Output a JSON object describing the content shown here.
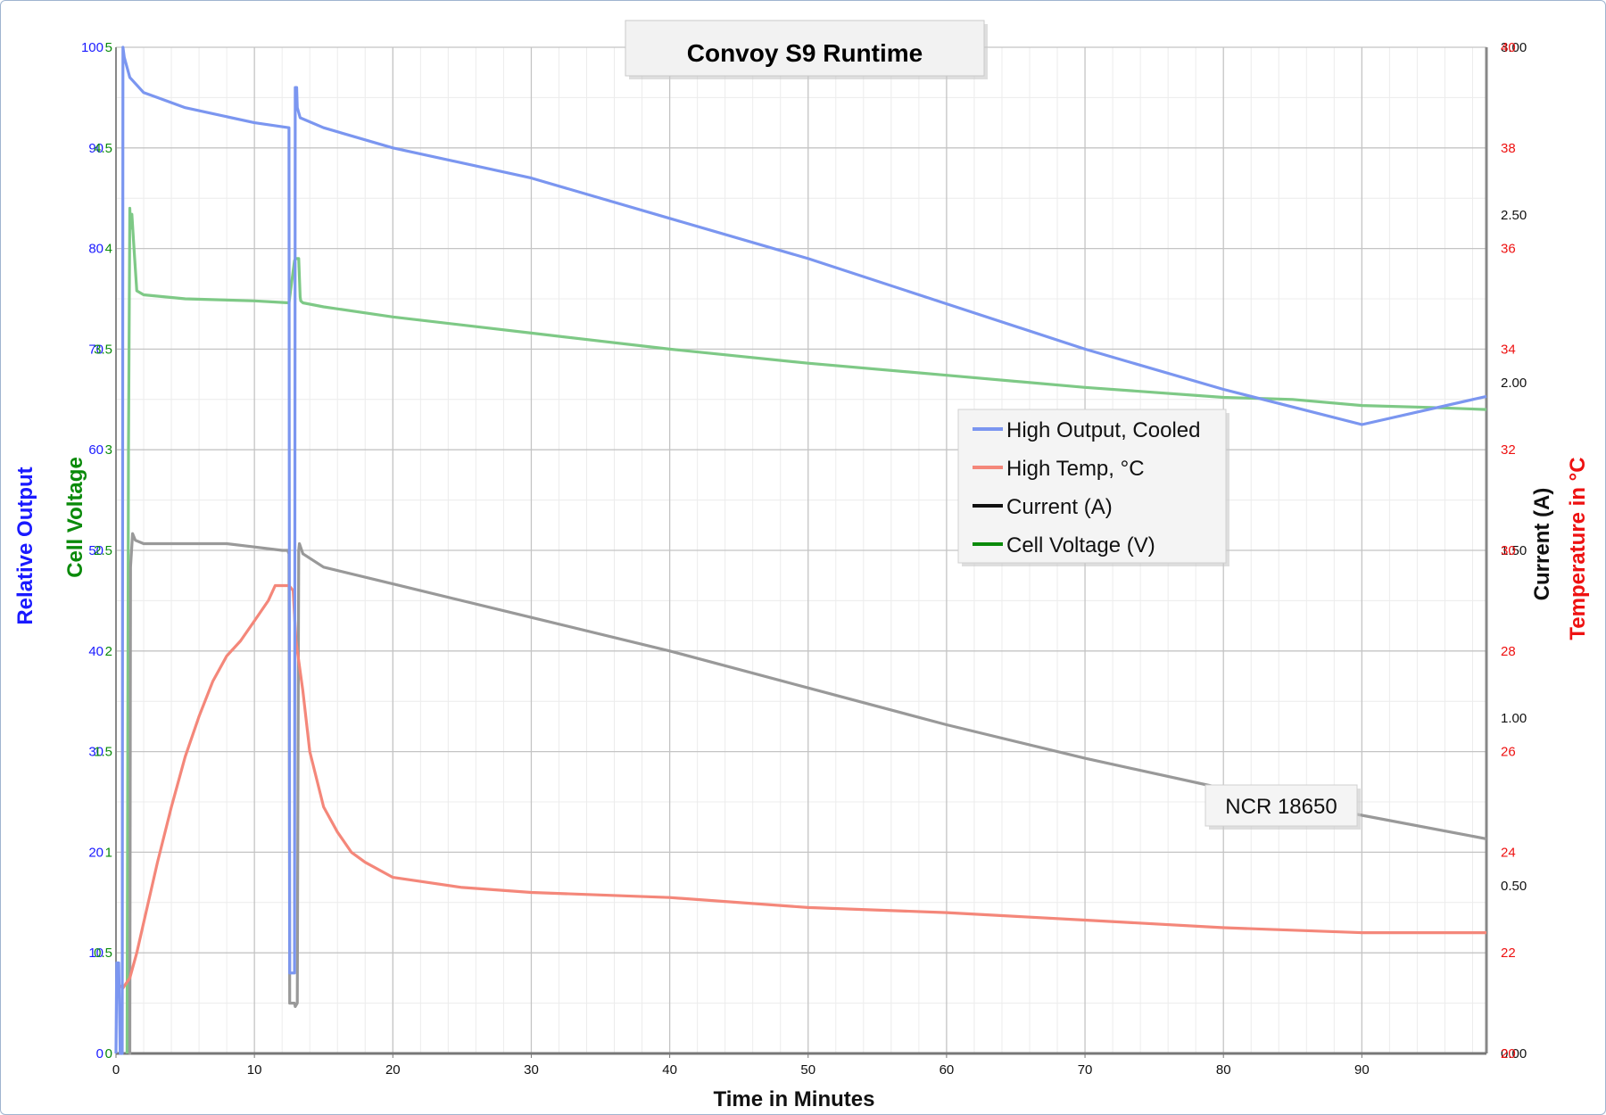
{
  "chart_data": {
    "type": "line",
    "title": "Convoy S9 Runtime",
    "xlabel": "Time in Minutes",
    "y_left_outer_label": "Relative Output",
    "y_left_inner_label": "Cell Voltage",
    "y_right_inner_label": "Current (A)",
    "y_right_outer_label": "Temperature in °C",
    "annotation": "NCR 18650",
    "xlim": [
      0,
      99
    ],
    "x_ticks": [
      "0",
      "10",
      "20",
      "30",
      "40",
      "50",
      "60",
      "70",
      "80",
      "90"
    ],
    "axes": {
      "relative_output": {
        "range": [
          0,
          100
        ],
        "ticks": [
          "0",
          "10",
          "20",
          "30",
          "40",
          "50",
          "60",
          "70",
          "80",
          "90",
          "100"
        ],
        "color": "#1a1aff"
      },
      "cell_voltage": {
        "range": [
          0,
          5
        ],
        "ticks": [
          "0",
          "0.5",
          "1",
          "1.5",
          "2",
          "2.5",
          "3",
          "3.5",
          "4",
          "4.5",
          "5"
        ],
        "color": "#0a8a0a"
      },
      "current": {
        "range": [
          0,
          3
        ],
        "ticks": [
          "0.00",
          "0.50",
          "1.00",
          "1.50",
          "2.00",
          "2.50",
          "3.00"
        ],
        "color": "#111111"
      },
      "temperature": {
        "range": [
          20,
          40
        ],
        "ticks": [
          "20",
          "22",
          "24",
          "26",
          "28",
          "30",
          "32",
          "34",
          "36",
          "38",
          "40"
        ],
        "color": "#ee1111"
      }
    },
    "legend_position": "center-right",
    "series": [
      {
        "name": "High Output, Cooled",
        "axis": "relative_output",
        "color": "#7b96f0",
        "x": [
          0,
          0.05,
          0.2,
          0.3,
          0.45,
          0.5,
          0.6,
          1,
          2,
          3,
          5,
          10,
          12.5,
          12.55,
          12.9,
          12.95,
          13.05,
          13.1,
          13.3,
          15,
          20,
          30,
          40,
          50,
          60,
          70,
          80,
          90,
          99
        ],
        "y": [
          0,
          9,
          9,
          0,
          0,
          100,
          99,
          97,
          95.5,
          95,
          94,
          92.5,
          92,
          8,
          8,
          96,
          96,
          94,
          93,
          92,
          90,
          87,
          83,
          79,
          74.5,
          70,
          66,
          62.5,
          65.3
        ]
      },
      {
        "name": "High Temp, °C",
        "axis": "temperature",
        "color": "#f4877a",
        "x": [
          0,
          0.5,
          1,
          1.5,
          2,
          3,
          4,
          5,
          6,
          7,
          8,
          9,
          10,
          11,
          11.5,
          12,
          12.5,
          12.8,
          13,
          13.5,
          14,
          15,
          16,
          17,
          18,
          20,
          25,
          30,
          40,
          50,
          60,
          70,
          80,
          90,
          99
        ],
        "y": [
          21.4,
          21.3,
          21.5,
          22,
          22.6,
          23.8,
          24.9,
          25.9,
          26.7,
          27.4,
          27.9,
          28.2,
          28.6,
          29,
          29.3,
          29.3,
          29.3,
          29.2,
          28.2,
          27.2,
          26,
          24.9,
          24.4,
          24,
          23.8,
          23.5,
          23.3,
          23.2,
          23.1,
          22.9,
          22.8,
          22.65,
          22.5,
          22.4,
          22.4
        ]
      },
      {
        "name": "Current (A)",
        "axis": "current",
        "color": "#999999",
        "x": [
          0.9,
          1.0,
          1.05,
          1.2,
          1.4,
          2,
          5,
          8,
          10,
          12,
          12.4,
          12.5,
          12.55,
          12.9,
          12.95,
          13.1,
          13.2,
          13.25,
          13.5,
          15,
          20,
          30,
          40,
          50,
          60,
          70,
          80,
          90,
          99
        ],
        "y": [
          0,
          0,
          1.45,
          1.55,
          1.53,
          1.52,
          1.52,
          1.52,
          1.51,
          1.5,
          1.5,
          1.49,
          0.15,
          0.15,
          0.14,
          0.15,
          1.5,
          1.52,
          1.49,
          1.45,
          1.4,
          1.3,
          1.2,
          1.09,
          0.98,
          0.88,
          0.79,
          0.71,
          0.64
        ]
      },
      {
        "name": "Cell Voltage (V)",
        "axis": "cell_voltage",
        "color": "#7ec986",
        "x": [
          0.8,
          0.9,
          1,
          1.05,
          1.15,
          1.3,
          1.5,
          2,
          5,
          10,
          12.5,
          12.9,
          13,
          13.2,
          13.3,
          13.35,
          13.5,
          15,
          20,
          30,
          40,
          50,
          60,
          70,
          80,
          85,
          90,
          95,
          99
        ],
        "y": [
          0,
          3,
          4.2,
          4.1,
          4.17,
          4,
          3.79,
          3.77,
          3.75,
          3.74,
          3.73,
          3.94,
          3.95,
          3.95,
          3.76,
          3.74,
          3.73,
          3.71,
          3.66,
          3.58,
          3.5,
          3.43,
          3.37,
          3.31,
          3.26,
          3.25,
          3.22,
          3.21,
          3.2
        ]
      }
    ]
  }
}
